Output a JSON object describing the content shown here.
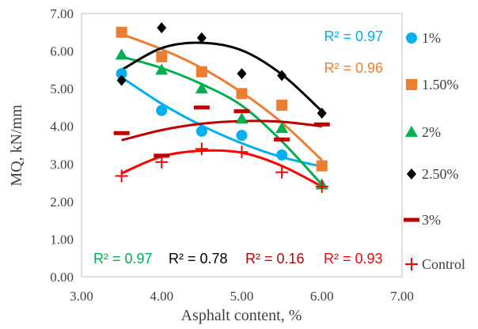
{
  "chart_data": {
    "type": "scatter",
    "xlabel": "Asphalt content, %",
    "ylabel": "MQ, kN/mm",
    "xlim": [
      3.0,
      7.0
    ],
    "ylim": [
      0.0,
      7.0
    ],
    "x_ticks": [
      "3.00",
      "4.00",
      "5.00",
      "6.00",
      "7.00"
    ],
    "y_ticks": [
      "0.00",
      "1.00",
      "2.00",
      "3.00",
      "4.00",
      "5.00",
      "6.00",
      "7.00"
    ],
    "grid": false,
    "legend_position": "right",
    "series": [
      {
        "name": "1%",
        "color": "#00B0F0",
        "marker": "circle",
        "x": [
          3.5,
          4.0,
          4.5,
          5.0,
          5.5,
          6.0
        ],
        "y": [
          5.4,
          4.42,
          3.87,
          3.76,
          3.24,
          2.95
        ],
        "trend": [
          5.3,
          4.6,
          4.02,
          3.55,
          3.18,
          2.93
        ],
        "r2": "R² = 0.97"
      },
      {
        "name": "1.50%",
        "color": "#ED7D31",
        "marker": "square",
        "x": [
          3.5,
          4.0,
          4.5,
          5.0,
          5.5,
          6.0
        ],
        "y": [
          6.5,
          5.85,
          5.45,
          4.87,
          4.56,
          2.95
        ],
        "trend": [
          6.45,
          6.05,
          5.55,
          4.9,
          4.1,
          3.1
        ],
        "r2": "R² = 0.96"
      },
      {
        "name": "2%",
        "color": "#00B050",
        "marker": "triangle",
        "x": [
          3.5,
          4.0,
          4.5,
          5.0,
          5.5,
          6.0
        ],
        "y": [
          5.9,
          5.5,
          5.0,
          4.2,
          3.95,
          2.45
        ],
        "trend": [
          5.85,
          5.55,
          5.12,
          4.55,
          3.6,
          2.45
        ],
        "r2": "R² = 0.97"
      },
      {
        "name": "2.50%",
        "color": "#000000",
        "marker": "diamond",
        "x": [
          3.5,
          4.0,
          4.5,
          5.0,
          5.5,
          6.0
        ],
        "y": [
          5.22,
          6.62,
          6.35,
          5.4,
          5.35,
          4.35
        ],
        "trend": [
          5.5,
          6.08,
          6.22,
          6.02,
          5.38,
          4.4
        ],
        "r2": "R² = 0.78"
      },
      {
        "name": "3%",
        "color": "#C00000",
        "marker": "dash",
        "x": [
          3.5,
          4.0,
          4.5,
          5.0,
          5.5,
          6.0
        ],
        "y": [
          3.82,
          3.22,
          4.5,
          4.4,
          3.65,
          4.05
        ],
        "trend": [
          3.63,
          3.9,
          4.07,
          4.14,
          4.12,
          4.0
        ],
        "r2": "R² = 0.16"
      },
      {
        "name": "Control",
        "color": "#FF0000",
        "marker": "plus",
        "x": [
          3.5,
          4.0,
          4.5,
          5.0,
          5.5,
          6.0
        ],
        "y": [
          2.68,
          3.05,
          3.4,
          3.32,
          2.78,
          2.4
        ],
        "trend": [
          2.75,
          3.2,
          3.35,
          3.3,
          2.95,
          2.4
        ],
        "r2": "R² = 0.93"
      }
    ]
  }
}
